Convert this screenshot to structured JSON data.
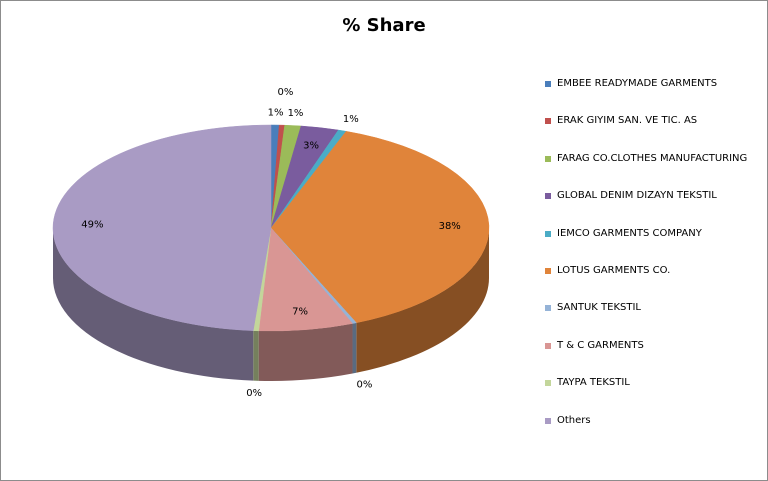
{
  "chart_data": {
    "type": "pie3d",
    "title": "% Share",
    "categories": [
      "EMBEE READYMADE GARMENTS",
      "ERAK GIYIM SAN. VE TIC. AS",
      "FARAG CO.CLOTHES MANUFACTURING",
      "GLOBAL DENIM DIZAYN TEKSTIL",
      "IEMCO GARMENTS COMPANY",
      "LOTUS GARMENTS CO.",
      "SANTUK TEKSTIL",
      "T & C GARMENTS",
      "TAYPA TEKSTIL",
      "Others"
    ],
    "values": [
      0.6,
      0.4,
      1.2,
      2.8,
      0.6,
      38,
      0.3,
      7,
      0.4,
      48.7
    ],
    "value_labels": [
      "1%",
      "0%",
      "1%",
      "3%",
      "1%",
      "38%",
      "0%",
      "7%",
      "0%",
      "49%"
    ],
    "colors": [
      "#4a7ebb",
      "#c0504d",
      "#9bbb59",
      "#7a5c9e",
      "#4bacc6",
      "#e0843a",
      "#95b3d7",
      "#d99694",
      "#c3d69b",
      "#a99bc4"
    ],
    "legend": "right"
  }
}
